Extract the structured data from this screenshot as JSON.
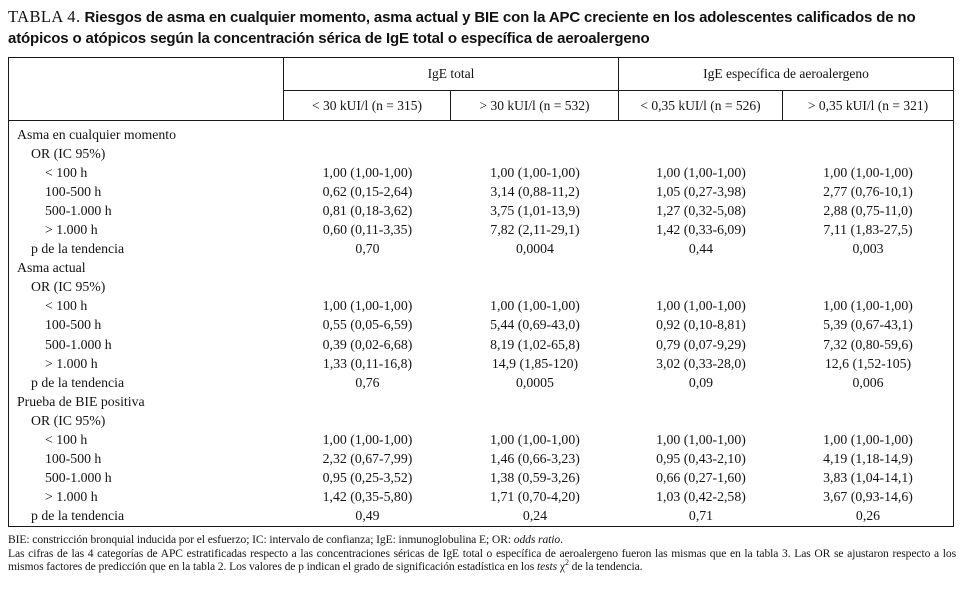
{
  "title": {
    "label": "TABLA 4.",
    "text": "Riesgos de asma en cualquier momento, asma actual y BIE con la APC creciente en los adolescentes calificados de no atópicos o atópicos según la concentración sérica de IgE total o específica de aeroalergeno"
  },
  "table": {
    "col_groups": [
      {
        "label": "IgE total",
        "columns": [
          "< 30 kUI/l (n = 315)",
          "> 30 kUI/l (n = 532)"
        ]
      },
      {
        "label": "IgE específica de aeroalergeno",
        "columns": [
          "< 0,35 kUI/l (n = 526)",
          "> 0,35 kUI/l (n = 321)"
        ]
      }
    ],
    "sections": [
      {
        "heading": "Asma en cualquier momento",
        "subheading": "OR (IC 95%)",
        "rows": [
          {
            "label": "< 100 h",
            "values": [
              "1,00 (1,00-1,00)",
              "1,00 (1,00-1,00)",
              "1,00 (1,00-1,00)",
              "1,00 (1,00-1,00)"
            ]
          },
          {
            "label": "100-500 h",
            "values": [
              "0,62 (0,15-2,64)",
              "3,14 (0,88-11,2)",
              "1,05 (0,27-3,98)",
              "2,77 (0,76-10,1)"
            ]
          },
          {
            "label": "500-1.000 h",
            "values": [
              "0,81 (0,18-3,62)",
              "3,75 (1,01-13,9)",
              "1,27 (0,32-5,08)",
              "2,88 (0,75-11,0)"
            ]
          },
          {
            "label": "> 1.000 h",
            "values": [
              "0,60 (0,11-3,35)",
              "7,82 (2,11-29,1)",
              "1,42 (0,33-6,09)",
              "7,11 (1,83-27,5)"
            ]
          }
        ],
        "p_row": {
          "label": "p de la tendencia",
          "values": [
            "0,70",
            "0,0004",
            "0,44",
            "0,003"
          ]
        }
      },
      {
        "heading": "Asma actual",
        "subheading": "OR (IC 95%)",
        "rows": [
          {
            "label": "< 100 h",
            "values": [
              "1,00 (1,00-1,00)",
              "1,00 (1,00-1,00)",
              "1,00 (1,00-1,00)",
              "1,00 (1,00-1,00)"
            ]
          },
          {
            "label": "100-500 h",
            "values": [
              "0,55 (0,05-6,59)",
              "5,44 (0,69-43,0)",
              "0,92 (0,10-8,81)",
              "5,39 (0,67-43,1)"
            ]
          },
          {
            "label": "500-1.000 h",
            "values": [
              "0,39 (0,02-6,68)",
              "8,19 (1,02-65,8)",
              "0,79 (0,07-9,29)",
              "7,32 (0,80-59,6)"
            ]
          },
          {
            "label": "> 1.000 h",
            "values": [
              "1,33 (0,11-16,8)",
              "14,9 (1,85-120)",
              "3,02 (0,33-28,0)",
              "12,6 (1,52-105)"
            ]
          }
        ],
        "p_row": {
          "label": "p de la tendencia",
          "values": [
            "0,76",
            "0,0005",
            "0,09",
            "0,006"
          ]
        }
      },
      {
        "heading": "Prueba de BIE positiva",
        "subheading": "OR (IC 95%)",
        "rows": [
          {
            "label": "< 100 h",
            "values": [
              "1,00 (1,00-1,00)",
              "1,00 (1,00-1,00)",
              "1,00 (1,00-1,00)",
              "1,00 (1,00-1,00)"
            ]
          },
          {
            "label": "100-500 h",
            "values": [
              "2,32 (0,67-7,99)",
              "1,46 (0,66-3,23)",
              "0,95 (0,43-2,10)",
              "4,19 (1,18-14,9)"
            ]
          },
          {
            "label": "500-1.000 h",
            "values": [
              "0,95 (0,25-3,52)",
              "1,38 (0,59-3,26)",
              "0,66 (0,27-1,60)",
              "3,83 (1,04-14,1)"
            ]
          },
          {
            "label": "> 1.000 h",
            "values": [
              "1,42 (0,35-5,80)",
              "1,71 (0,70-4,20)",
              "1,03 (0,42-2,58)",
              "3,67 (0,93-14,6)"
            ]
          }
        ],
        "p_row": {
          "label": "p de la tendencia",
          "values": [
            "0,49",
            "0,24",
            "0,71",
            "0,26"
          ]
        }
      }
    ]
  },
  "footnotes": [
    [
      {
        "t": "BIE: constricción bronquial inducida por el esfuerzo; IC: intervalo de confianza; IgE: inmunoglobulina E; OR: "
      },
      {
        "t": "odds ratio",
        "i": true
      },
      {
        "t": "."
      }
    ],
    [
      {
        "t": "Las cifras de las 4 categorías de APC estratificadas respecto a las concentraciones séricas de IgE total o específica de aeroalergeno fueron las mismas que en la tabla 3. Las OR se ajustaron respecto a los mismos factores de predicción que en la tabla 2. Los valores de p indican el grado de significación estadística en los "
      },
      {
        "t": "tests",
        "i": true
      },
      {
        "t": " χ"
      },
      {
        "t": "2",
        "sup": true
      },
      {
        "t": " de la tendencia."
      }
    ]
  ]
}
